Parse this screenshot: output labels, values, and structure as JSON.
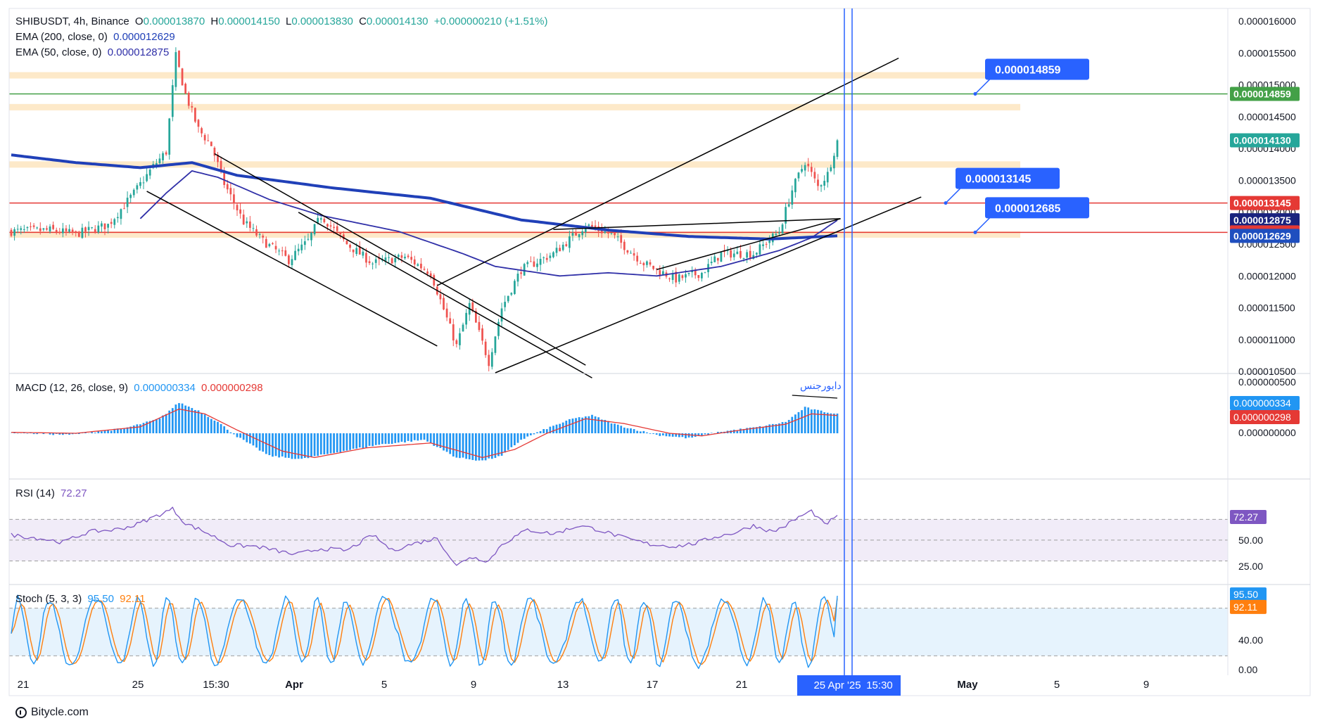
{
  "header": {
    "symbol": "SHIBUSDT, 4h, Binance",
    "ohlc": [
      {
        "k": "O",
        "v": "0.000013870"
      },
      {
        "k": "H",
        "v": "0.000014150"
      },
      {
        "k": "L",
        "v": "0.000013830"
      },
      {
        "k": "C",
        "v": "0.000014130"
      }
    ],
    "change": "+0.000000210 (+1.51%)",
    "ema200_label": "EMA (200, close, 0)",
    "ema200_value": "0.000012629",
    "ema50_label": "EMA (50, close, 0)",
    "ema50_value": "0.000012875"
  },
  "macd_legend": {
    "label": "MACD (12, 26, close, 9)",
    "v1": "0.000000334",
    "v2": "0.000000298"
  },
  "rsi_legend": {
    "label": "RSI (14)",
    "v": "72.27"
  },
  "stoch_legend": {
    "label": "Stoch (5, 3, 3)",
    "v1": "95.50",
    "v2": "92.11"
  },
  "annotation_arabic": "دایورجنس",
  "footer": {
    "brand": "Bitycle.com"
  },
  "colors": {
    "up": "#26a69a",
    "down": "#ef5350",
    "ema200": "#2040b8",
    "ema50": "#3030a8",
    "zone": "#fde5c0",
    "green_line": "#43a047",
    "red_line": "#e53935",
    "blue_vline": "#2962ff",
    "macd_hist": "#2196f3",
    "macd_signal": "#e53935",
    "rsi": "#7e57c2",
    "stoch_k": "#2196f3",
    "stoch_d": "#ff7f0e"
  },
  "chart_data": [
    {
      "type": "candlestick",
      "name": "price",
      "x_ticks": [
        "21",
        "25",
        "15:30",
        "Apr",
        "5",
        "9",
        "13",
        "17",
        "21",
        "25 Apr '25",
        "15:30",
        "May",
        "5",
        "9"
      ],
      "y_ticks": [
        "0.000016000",
        "0.000015500",
        "0.000015000",
        "0.000014500",
        "0.000014000",
        "0.000013500",
        "0.000013000",
        "0.000012500",
        "0.000012000",
        "0.000011500",
        "0.000011000",
        "0.000010500"
      ],
      "ylim": [
        1.048e-05,
        1.62e-05
      ],
      "key_levels": [
        {
          "label": "0.000014859",
          "value": 1.4859e-05,
          "color": "#43a047"
        },
        {
          "label": "0.000013145",
          "value": 1.3145e-05,
          "color": "#e53935"
        },
        {
          "label": "0.000012685",
          "value": 1.2685e-05,
          "color": "#e53935"
        }
      ],
      "price_tags": [
        {
          "label": "0.000014859",
          "value": 1.4859e-05,
          "color": "#43a047"
        },
        {
          "label": "0.000014130",
          "value": 1.413e-05,
          "color": "#26a69a"
        },
        {
          "label": "0.000013145",
          "value": 1.3145e-05,
          "color": "#e53935"
        },
        {
          "label": "0.000012875",
          "value": 1.2875e-05,
          "color": "#1a237e"
        },
        {
          "label": "0.000012685",
          "value": 1.2685e-05,
          "color": "#e53935"
        },
        {
          "label": "0.000012629",
          "value": 1.2629e-05,
          "color": "#1f4fbf"
        }
      ],
      "callouts": [
        {
          "label": "0.000014859",
          "value": 1.4859e-05
        },
        {
          "label": "0.000013145",
          "value": 1.3145e-05
        },
        {
          "label": "0.000012685",
          "value": 1.2685e-05
        }
      ],
      "zones": [
        [
          1.51e-05,
          1.52e-05
        ],
        [
          1.46e-05,
          1.47e-05
        ],
        [
          1.37e-05,
          1.38e-05
        ],
        [
          1.26e-05,
          1.27e-05
        ]
      ],
      "close_anchors": [
        [
          0,
          12.7
        ],
        [
          12,
          12.72
        ],
        [
          20,
          12.66
        ],
        [
          30,
          12.8
        ],
        [
          38,
          13.3
        ],
        [
          44,
          13.72
        ],
        [
          48,
          13.95
        ],
        [
          51,
          15.45
        ],
        [
          54,
          14.85
        ],
        [
          58,
          14.3
        ],
        [
          62,
          14.05
        ],
        [
          66,
          13.45
        ],
        [
          72,
          12.85
        ],
        [
          78,
          12.55
        ],
        [
          86,
          12.25
        ],
        [
          92,
          12.55
        ],
        [
          96,
          12.95
        ],
        [
          104,
          12.5
        ],
        [
          112,
          12.2
        ],
        [
          122,
          12.3
        ],
        [
          130,
          12.05
        ],
        [
          138,
          10.9
        ],
        [
          142,
          11.55
        ],
        [
          148,
          10.65
        ],
        [
          152,
          11.5
        ],
        [
          158,
          12.1
        ],
        [
          168,
          12.35
        ],
        [
          178,
          12.8
        ],
        [
          186,
          12.65
        ],
        [
          196,
          12.2
        ],
        [
          206,
          11.95
        ],
        [
          214,
          12.05
        ],
        [
          220,
          12.35
        ],
        [
          230,
          12.35
        ],
        [
          238,
          12.7
        ],
        [
          242,
          13.35
        ],
        [
          246,
          13.8
        ],
        [
          250,
          13.4
        ],
        [
          253,
          13.6
        ],
        [
          256,
          14.13
        ]
      ],
      "ema200_anchors": [
        [
          0,
          13.9
        ],
        [
          20,
          13.78
        ],
        [
          40,
          13.7
        ],
        [
          56,
          13.78
        ],
        [
          70,
          13.58
        ],
        [
          100,
          13.38
        ],
        [
          130,
          13.22
        ],
        [
          158,
          12.88
        ],
        [
          185,
          12.72
        ],
        [
          210,
          12.62
        ],
        [
          235,
          12.58
        ],
        [
          256,
          12.63
        ]
      ],
      "ema50_anchors": [
        [
          40,
          12.9
        ],
        [
          48,
          13.3
        ],
        [
          56,
          13.65
        ],
        [
          64,
          13.55
        ],
        [
          80,
          13.2
        ],
        [
          96,
          12.95
        ],
        [
          120,
          12.7
        ],
        [
          140,
          12.35
        ],
        [
          150,
          12.15
        ],
        [
          170,
          12.0
        ],
        [
          185,
          12.05
        ],
        [
          200,
          12.0
        ],
        [
          220,
          12.15
        ],
        [
          238,
          12.4
        ],
        [
          248,
          12.6
        ],
        [
          256,
          12.875
        ]
      ]
    },
    {
      "type": "bar",
      "name": "MACD",
      "series_names": [
        "MACD",
        "Signal"
      ],
      "y_ticks": [
        "0.000000500",
        "0.000000000"
      ],
      "values_now": [
        3.34e-07,
        2.98e-07
      ],
      "hist_anchors": [
        [
          0,
          0.02
        ],
        [
          18,
          -0.05
        ],
        [
          35,
          0.15
        ],
        [
          46,
          0.45
        ],
        [
          52,
          0.95
        ],
        [
          58,
          0.7
        ],
        [
          64,
          0.35
        ],
        [
          70,
          -0.1
        ],
        [
          80,
          -0.7
        ],
        [
          90,
          -0.8
        ],
        [
          100,
          -0.6
        ],
        [
          114,
          -0.35
        ],
        [
          128,
          -0.2
        ],
        [
          138,
          -0.75
        ],
        [
          146,
          -0.85
        ],
        [
          152,
          -0.7
        ],
        [
          158,
          -0.2
        ],
        [
          166,
          0.15
        ],
        [
          174,
          0.45
        ],
        [
          180,
          0.55
        ],
        [
          188,
          0.25
        ],
        [
          200,
          -0.05
        ],
        [
          210,
          -0.15
        ],
        [
          220,
          0.05
        ],
        [
          232,
          0.2
        ],
        [
          240,
          0.35
        ],
        [
          246,
          0.8
        ],
        [
          250,
          0.7
        ],
        [
          256,
          0.6
        ]
      ],
      "signal_anchors": [
        [
          0,
          0.03
        ],
        [
          20,
          0.0
        ],
        [
          40,
          0.2
        ],
        [
          52,
          0.75
        ],
        [
          60,
          0.6
        ],
        [
          70,
          0.1
        ],
        [
          84,
          -0.55
        ],
        [
          94,
          -0.75
        ],
        [
          110,
          -0.45
        ],
        [
          130,
          -0.3
        ],
        [
          146,
          -0.75
        ],
        [
          156,
          -0.5
        ],
        [
          166,
          0.0
        ],
        [
          178,
          0.45
        ],
        [
          190,
          0.3
        ],
        [
          204,
          0.0
        ],
        [
          214,
          -0.08
        ],
        [
          226,
          0.1
        ],
        [
          240,
          0.28
        ],
        [
          248,
          0.6
        ],
        [
          256,
          0.55
        ]
      ]
    },
    {
      "type": "line",
      "name": "RSI",
      "y_ticks": [
        "72.27",
        "50.00",
        "25.00"
      ],
      "band": [
        30,
        70
      ],
      "value_now": 72.27,
      "anchors": [
        [
          0,
          55
        ],
        [
          8,
          52
        ],
        [
          16,
          48
        ],
        [
          24,
          58
        ],
        [
          32,
          60
        ],
        [
          38,
          64
        ],
        [
          44,
          72
        ],
        [
          50,
          80
        ],
        [
          54,
          66
        ],
        [
          60,
          58
        ],
        [
          68,
          45
        ],
        [
          76,
          44
        ],
        [
          88,
          36
        ],
        [
          96,
          42
        ],
        [
          104,
          40
        ],
        [
          112,
          55
        ],
        [
          118,
          40
        ],
        [
          124,
          46
        ],
        [
          132,
          52
        ],
        [
          138,
          25
        ],
        [
          142,
          34
        ],
        [
          148,
          30
        ],
        [
          152,
          46
        ],
        [
          160,
          60
        ],
        [
          168,
          56
        ],
        [
          176,
          64
        ],
        [
          182,
          60
        ],
        [
          190,
          52
        ],
        [
          198,
          46
        ],
        [
          206,
          44
        ],
        [
          212,
          47
        ],
        [
          218,
          53
        ],
        [
          224,
          57
        ],
        [
          230,
          64
        ],
        [
          236,
          58
        ],
        [
          240,
          64
        ],
        [
          244,
          72
        ],
        [
          248,
          78
        ],
        [
          252,
          65
        ],
        [
          256,
          72.27
        ]
      ]
    },
    {
      "type": "line",
      "name": "Stoch",
      "y_ticks": [
        "95.50",
        "92.11",
        "40.00",
        "0.00"
      ],
      "band": [
        20,
        80
      ],
      "values_now": [
        95.5,
        92.11
      ]
    }
  ]
}
